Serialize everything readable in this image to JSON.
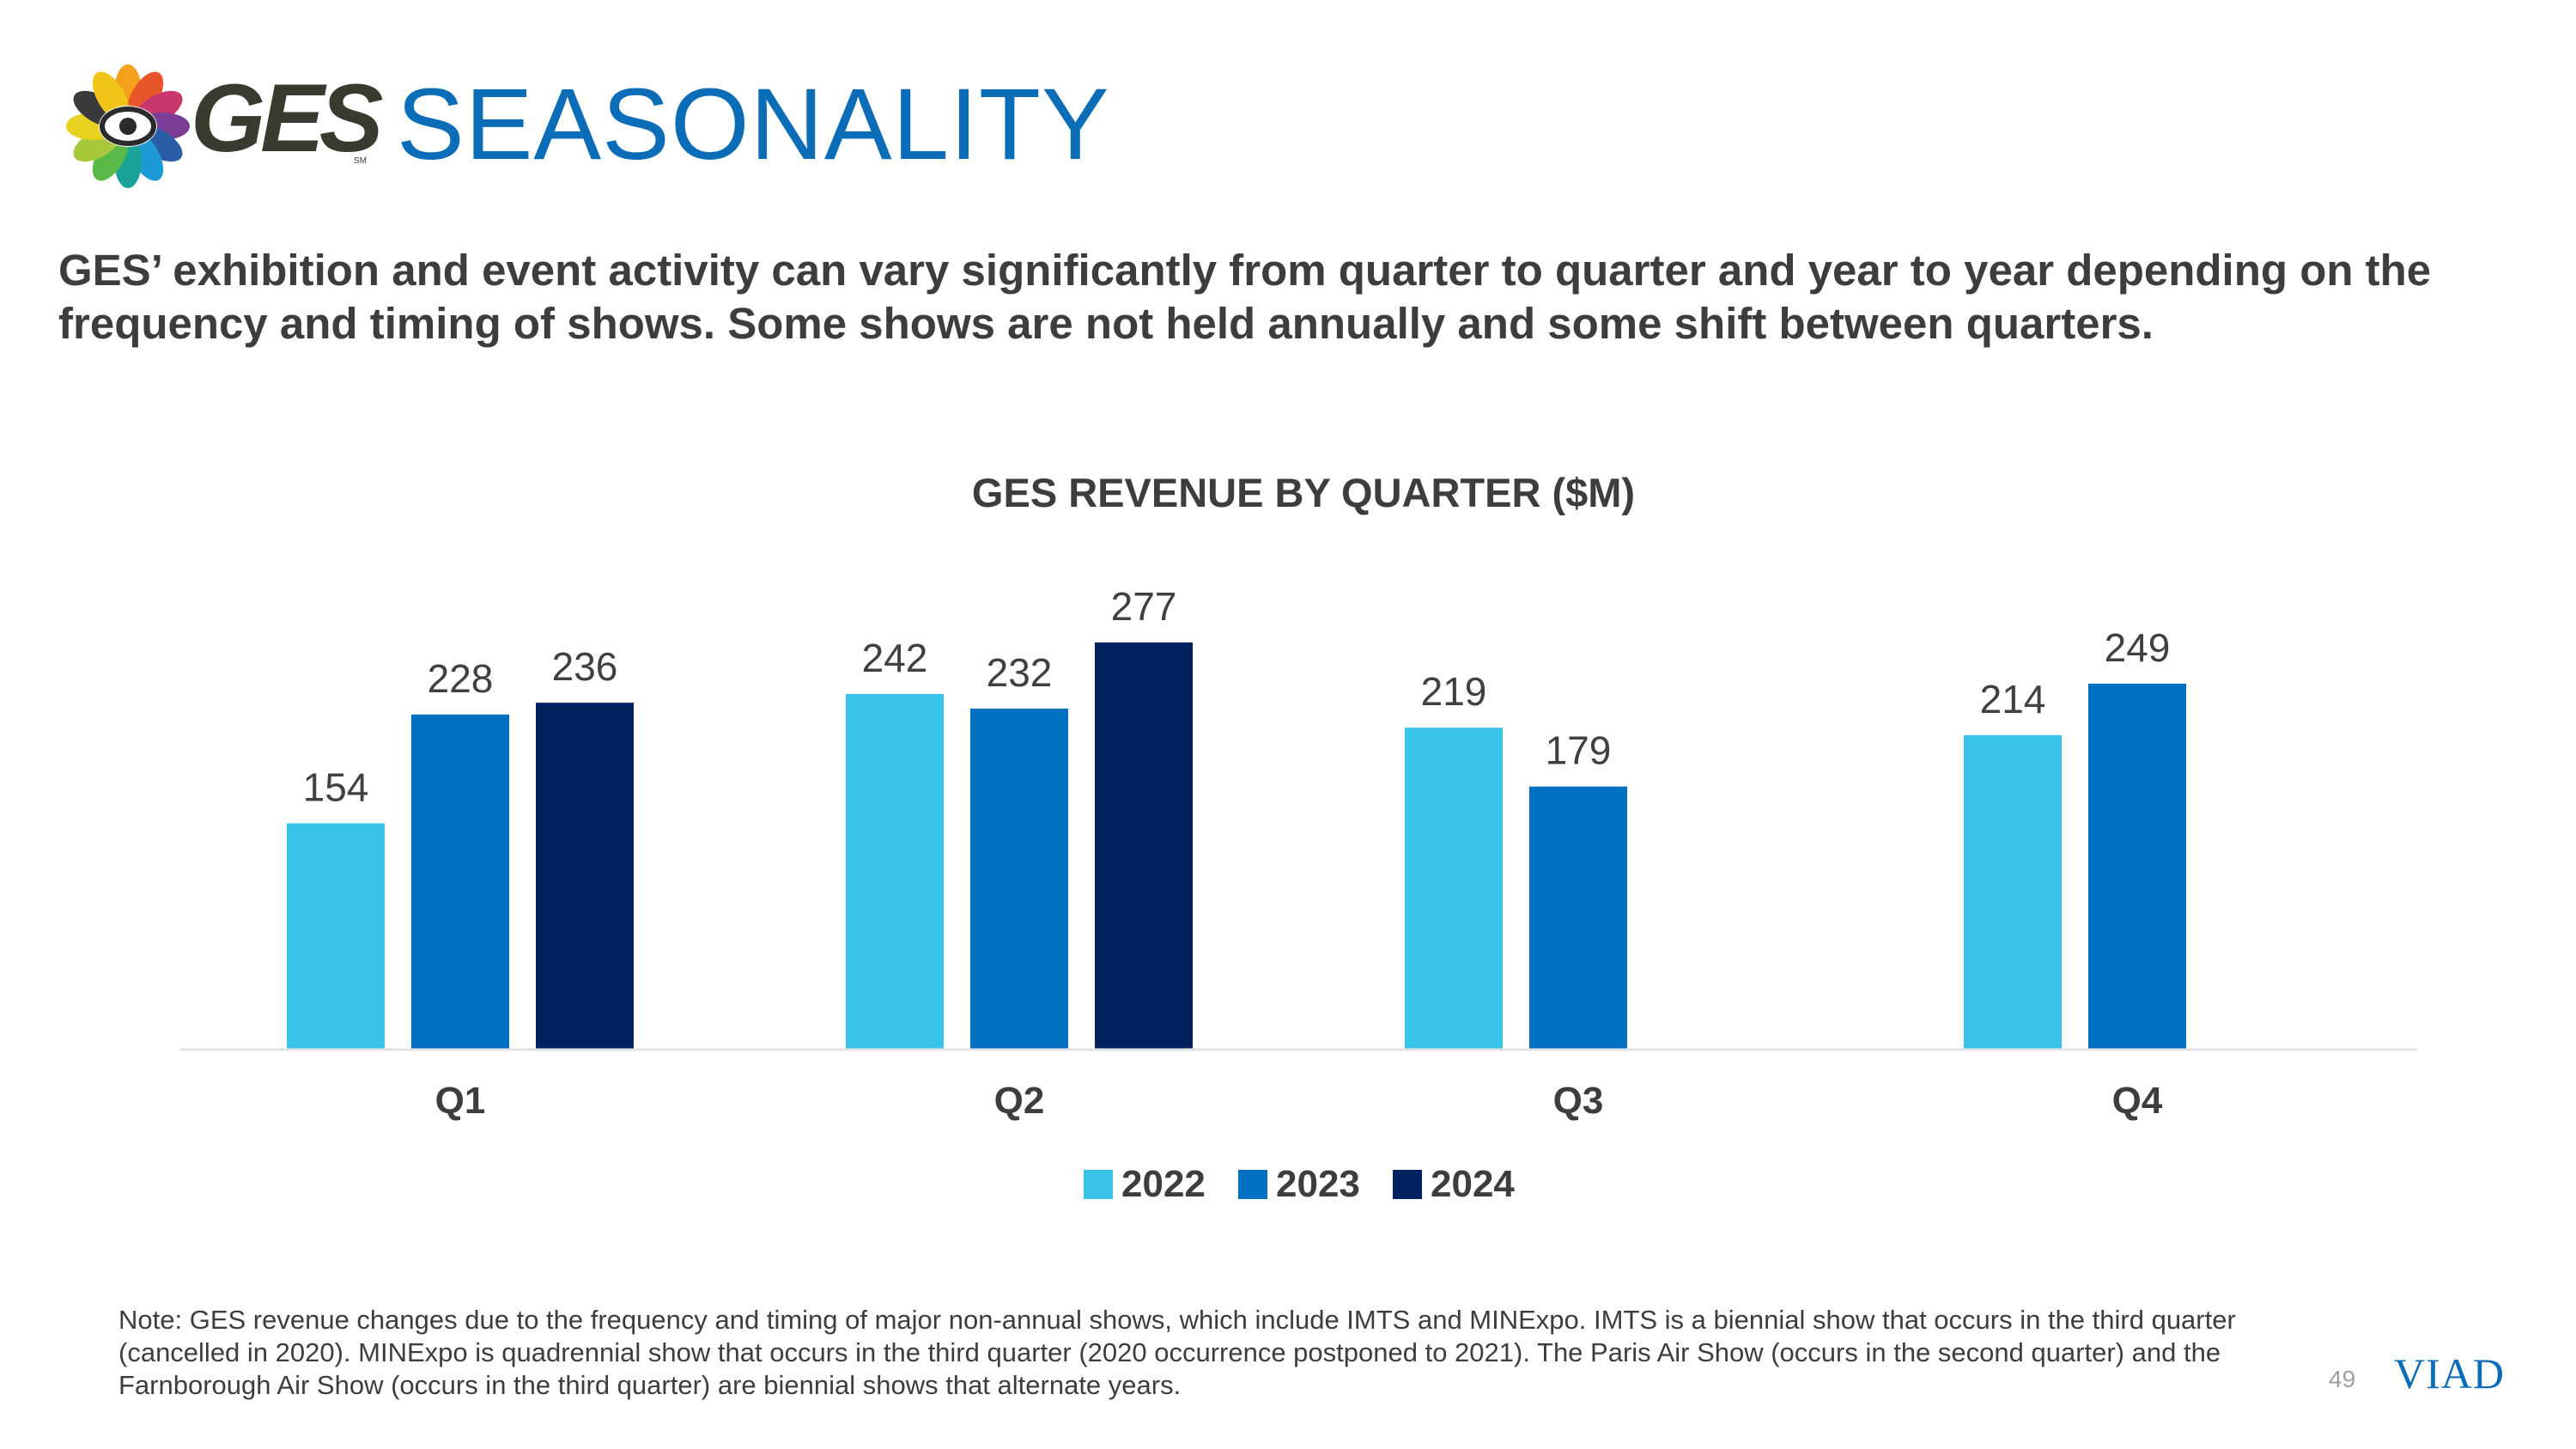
{
  "header": {
    "logo_text": "GES",
    "logo_mark": "SM",
    "title": "SEASONALITY"
  },
  "subtitle": "GES’ exhibition and event activity can vary significantly from quarter to quarter and year to year depending on the frequency and timing of shows. Some shows are not held annually and some shift between quarters.",
  "chart_data": {
    "type": "bar",
    "title": "GES REVENUE BY QUARTER ($M)",
    "categories": [
      "Q1",
      "Q2",
      "Q3",
      "Q4"
    ],
    "series": [
      {
        "name": "2022",
        "color": "#38c3e8",
        "values": [
          154,
          242,
          219,
          214
        ]
      },
      {
        "name": "2023",
        "color": "#0070c0",
        "values": [
          228,
          232,
          179,
          249
        ]
      },
      {
        "name": "2024",
        "color": "#002060",
        "values": [
          236,
          277,
          null,
          null
        ]
      }
    ],
    "xlabel": "",
    "ylabel": "",
    "ylim": [
      0,
      277
    ],
    "grid": false,
    "legend": "bottom-center"
  },
  "footer": {
    "note": "Note: GES revenue changes due to the frequency and timing of major non-annual shows, which include IMTS and MINExpo. IMTS is a biennial show that occurs in the third quarter (cancelled in 2020). MINExpo is quadrennial show that occurs in the third quarter (2020 occurrence postponed to 2021). The Paris Air Show (occurs in the second quarter) and the Farnborough Air Show (occurs in the third quarter) are biennial shows that alternate years.",
    "page_number": "49",
    "brand": "VIAD"
  }
}
